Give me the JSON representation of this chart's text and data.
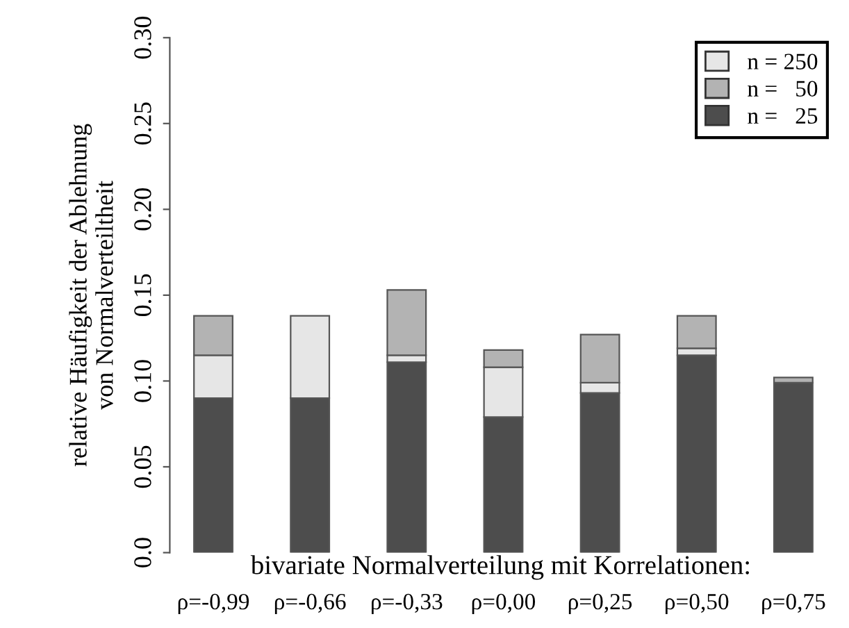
{
  "chart_data": {
    "type": "bar",
    "stacked": true,
    "xlabel": "bivariate Normalverteilung mit Korrelationen:",
    "ylabel": "relative Häufigkeit der Ablehnung\nvon Normalverteiltheit",
    "categories": [
      "ρ=-0,99",
      "ρ=-0,66",
      "ρ=-0,33",
      "ρ=0,00",
      "ρ=0,25",
      "ρ=0,50",
      "ρ=0,75"
    ],
    "series": [
      {
        "name": "n =   25",
        "color": "#4d4d4d",
        "values": [
          0.09,
          0.09,
          0.111,
          0.079,
          0.093,
          0.115,
          0.099
        ]
      },
      {
        "name": "n = 250",
        "color": "#e6e6e6",
        "values": [
          0.025,
          0.048,
          0.004,
          0.029,
          0.006,
          0.004,
          null
        ]
      },
      {
        "name": "n =   50",
        "color": "#b3b3b3",
        "values": [
          0.023,
          null,
          0.038,
          0.01,
          0.028,
          0.019,
          0.003
        ]
      }
    ],
    "ylim": [
      0,
      0.3
    ],
    "yticks": [
      {
        "value": 0,
        "label": "0.0"
      },
      0.05,
      {
        "value": 0.1,
        "label": "0.10"
      },
      0.15,
      {
        "value": 0.2,
        "label": "0.20"
      },
      0.25,
      {
        "value": 0.3,
        "label": "0.30"
      }
    ],
    "grid": false,
    "legend": "top right"
  }
}
